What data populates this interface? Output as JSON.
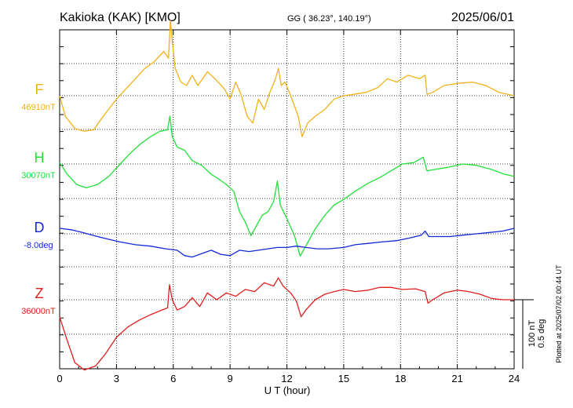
{
  "header": {
    "station": "Kakioka (KAK)  [KMO]",
    "coords": "GG ( 36.23°, 140.19°)",
    "date": "2025/06/01"
  },
  "footer": {
    "plotted": "Plotted at 2025/07/02 00:44 UT"
  },
  "scale_bar": {
    "nt_label": "100 nT",
    "deg_label": "0.5 deg"
  },
  "chart_data": {
    "type": "line",
    "title": "Kakioka (KAK)  [KMO]",
    "xlabel": "U T (hour)",
    "xlim": [
      0,
      24
    ],
    "x_ticks": [
      0,
      3,
      6,
      9,
      12,
      15,
      18,
      21,
      24
    ],
    "grid": true,
    "colors": {
      "F": "#f2b21a",
      "H": "#22e03a",
      "D": "#1428d8",
      "Z": "#e01e1e"
    },
    "series": [
      {
        "name": "F",
        "baseline_label": "46910nT",
        "unit": "nT",
        "baseline": 46910,
        "points": [
          [
            0,
            46910
          ],
          [
            0.3,
            46880
          ],
          [
            0.8,
            46862
          ],
          [
            1.3,
            46858
          ],
          [
            1.8,
            46860
          ],
          [
            2.3,
            46880
          ],
          [
            3,
            46905
          ],
          [
            3.5,
            46920
          ],
          [
            4,
            46935
          ],
          [
            4.5,
            46950
          ],
          [
            5,
            46960
          ],
          [
            5.5,
            46975
          ],
          [
            5.75,
            46965
          ],
          [
            5.85,
            47020
          ],
          [
            5.95,
            46990
          ],
          [
            6.1,
            46950
          ],
          [
            6.4,
            46930
          ],
          [
            6.7,
            46925
          ],
          [
            7,
            46940
          ],
          [
            7.3,
            46925
          ],
          [
            7.8,
            46945
          ],
          [
            8.2,
            46935
          ],
          [
            8.7,
            46920
          ],
          [
            9,
            46905
          ],
          [
            9.3,
            46930
          ],
          [
            9.6,
            46910
          ],
          [
            9.9,
            46880
          ],
          [
            10.2,
            46870
          ],
          [
            10.5,
            46905
          ],
          [
            10.8,
            46890
          ],
          [
            11.1,
            46915
          ],
          [
            11.4,
            46935
          ],
          [
            11.55,
            46950
          ],
          [
            11.7,
            46925
          ],
          [
            11.9,
            46930
          ],
          [
            12.2,
            46910
          ],
          [
            12.6,
            46880
          ],
          [
            12.8,
            46850
          ],
          [
            13.1,
            46870
          ],
          [
            13.5,
            46880
          ],
          [
            14,
            46890
          ],
          [
            14.5,
            46905
          ],
          [
            15,
            46910
          ],
          [
            15.5,
            46912
          ],
          [
            16.2,
            46915
          ],
          [
            16.8,
            46922
          ],
          [
            17.3,
            46935
          ],
          [
            17.8,
            46930
          ],
          [
            18.4,
            46940
          ],
          [
            19,
            46935
          ],
          [
            19.3,
            46940
          ],
          [
            19.4,
            46912
          ],
          [
            19.7,
            46915
          ],
          [
            20.3,
            46925
          ],
          [
            21,
            46928
          ],
          [
            21.8,
            46930
          ],
          [
            22.5,
            46925
          ],
          [
            23.2,
            46915
          ],
          [
            24,
            46910
          ]
        ]
      },
      {
        "name": "H",
        "baseline_label": "30070nT",
        "unit": "nT",
        "baseline": 30070,
        "points": [
          [
            0,
            30072
          ],
          [
            0.4,
            30055
          ],
          [
            0.9,
            30040
          ],
          [
            1.4,
            30035
          ],
          [
            2,
            30040
          ],
          [
            2.6,
            30052
          ],
          [
            3.2,
            30070
          ],
          [
            3.7,
            30085
          ],
          [
            4.3,
            30100
          ],
          [
            4.8,
            30110
          ],
          [
            5.3,
            30118
          ],
          [
            5.7,
            30120
          ],
          [
            5.82,
            30140
          ],
          [
            5.95,
            30110
          ],
          [
            6.2,
            30095
          ],
          [
            6.6,
            30090
          ],
          [
            7,
            30075
          ],
          [
            7.5,
            30068
          ],
          [
            8,
            30055
          ],
          [
            8.4,
            30048
          ],
          [
            8.8,
            30040
          ],
          [
            9.2,
            30030
          ],
          [
            9.5,
            30000
          ],
          [
            9.8,
            29985
          ],
          [
            10.1,
            29965
          ],
          [
            10.4,
            29980
          ],
          [
            10.7,
            29995
          ],
          [
            11,
            30000
          ],
          [
            11.3,
            30015
          ],
          [
            11.5,
            30045
          ],
          [
            11.65,
            30010
          ],
          [
            12,
            29990
          ],
          [
            12.4,
            29965
          ],
          [
            12.7,
            29935
          ],
          [
            13,
            29950
          ],
          [
            13.5,
            29975
          ],
          [
            14,
            29995
          ],
          [
            14.5,
            30010
          ],
          [
            15,
            30018
          ],
          [
            15.6,
            30030
          ],
          [
            16.3,
            30042
          ],
          [
            16.9,
            30050
          ],
          [
            17.5,
            30060
          ],
          [
            18.1,
            30070
          ],
          [
            18.7,
            30072
          ],
          [
            19.2,
            30080
          ],
          [
            19.4,
            30060
          ],
          [
            19.8,
            30062
          ],
          [
            20.5,
            30065
          ],
          [
            21.3,
            30070
          ],
          [
            22,
            30068
          ],
          [
            22.8,
            30062
          ],
          [
            23.5,
            30055
          ],
          [
            24,
            30052
          ]
        ]
      },
      {
        "name": "D",
        "baseline_label": "-8.0deg",
        "unit": "deg",
        "baseline": -8.0,
        "points": [
          [
            0,
            -7.96
          ],
          [
            0.6,
            -7.97
          ],
          [
            1.2,
            -7.99
          ],
          [
            2,
            -8.02
          ],
          [
            2.6,
            -8.04
          ],
          [
            3.2,
            -8.06
          ],
          [
            4,
            -8.08
          ],
          [
            4.8,
            -8.09
          ],
          [
            5.6,
            -8.11
          ],
          [
            6.2,
            -8.12
          ],
          [
            6.6,
            -8.16
          ],
          [
            7,
            -8.17
          ],
          [
            7.6,
            -8.14
          ],
          [
            8,
            -8.12
          ],
          [
            8.5,
            -8.15
          ],
          [
            9,
            -8.16
          ],
          [
            9.5,
            -8.12
          ],
          [
            10,
            -8.13
          ],
          [
            10.5,
            -8.12
          ],
          [
            11,
            -8.11
          ],
          [
            11.5,
            -8.1
          ],
          [
            12,
            -8.1
          ],
          [
            12.5,
            -8.09
          ],
          [
            13,
            -8.1
          ],
          [
            13.6,
            -8.11
          ],
          [
            14.2,
            -8.11
          ],
          [
            15,
            -8.1
          ],
          [
            15.6,
            -8.08
          ],
          [
            16.3,
            -8.07
          ],
          [
            17,
            -8.06
          ],
          [
            17.8,
            -8.05
          ],
          [
            18.5,
            -8.03
          ],
          [
            19.1,
            -8.01
          ],
          [
            19.3,
            -7.98
          ],
          [
            19.5,
            -8.02
          ],
          [
            20,
            -8.02
          ],
          [
            20.6,
            -8.02
          ],
          [
            21.3,
            -8.01
          ],
          [
            22,
            -8.0
          ],
          [
            22.7,
            -7.99
          ],
          [
            23.4,
            -7.98
          ],
          [
            24,
            -7.96
          ]
        ]
      },
      {
        "name": "Z",
        "baseline_label": "36000nT",
        "unit": "nT",
        "baseline": 36000,
        "points": [
          [
            0,
            35975
          ],
          [
            0.4,
            35940
          ],
          [
            0.8,
            35908
          ],
          [
            1.3,
            35897
          ],
          [
            1.9,
            35903
          ],
          [
            2.4,
            35920
          ],
          [
            3,
            35945
          ],
          [
            3.6,
            35960
          ],
          [
            4.2,
            35970
          ],
          [
            4.8,
            35978
          ],
          [
            5.4,
            35985
          ],
          [
            5.7,
            35988
          ],
          [
            5.8,
            36022
          ],
          [
            5.95,
            36000
          ],
          [
            6.2,
            35985
          ],
          [
            6.6,
            35990
          ],
          [
            7,
            36003
          ],
          [
            7.4,
            35990
          ],
          [
            7.8,
            36010
          ],
          [
            8.3,
            36000
          ],
          [
            8.8,
            36010
          ],
          [
            9.3,
            36005
          ],
          [
            9.8,
            36015
          ],
          [
            10.3,
            36012
          ],
          [
            10.8,
            36025
          ],
          [
            11.3,
            36020
          ],
          [
            11.55,
            36032
          ],
          [
            11.8,
            36020
          ],
          [
            12.2,
            36010
          ],
          [
            12.5,
            35998
          ],
          [
            12.75,
            35975
          ],
          [
            13,
            35985
          ],
          [
            13.5,
            36000
          ],
          [
            14,
            36008
          ],
          [
            14.5,
            36012
          ],
          [
            15,
            36015
          ],
          [
            15.6,
            36012
          ],
          [
            16.3,
            36014
          ],
          [
            16.9,
            36018
          ],
          [
            17.5,
            36018
          ],
          [
            18.1,
            36015
          ],
          [
            18.8,
            36016
          ],
          [
            19.3,
            36012
          ],
          [
            19.45,
            35995
          ],
          [
            19.7,
            36000
          ],
          [
            20.3,
            36010
          ],
          [
            21,
            36014
          ],
          [
            21.6,
            36012
          ],
          [
            22.2,
            36008
          ],
          [
            22.8,
            36002
          ],
          [
            23.4,
            36000
          ],
          [
            24,
            36000
          ]
        ]
      }
    ]
  }
}
